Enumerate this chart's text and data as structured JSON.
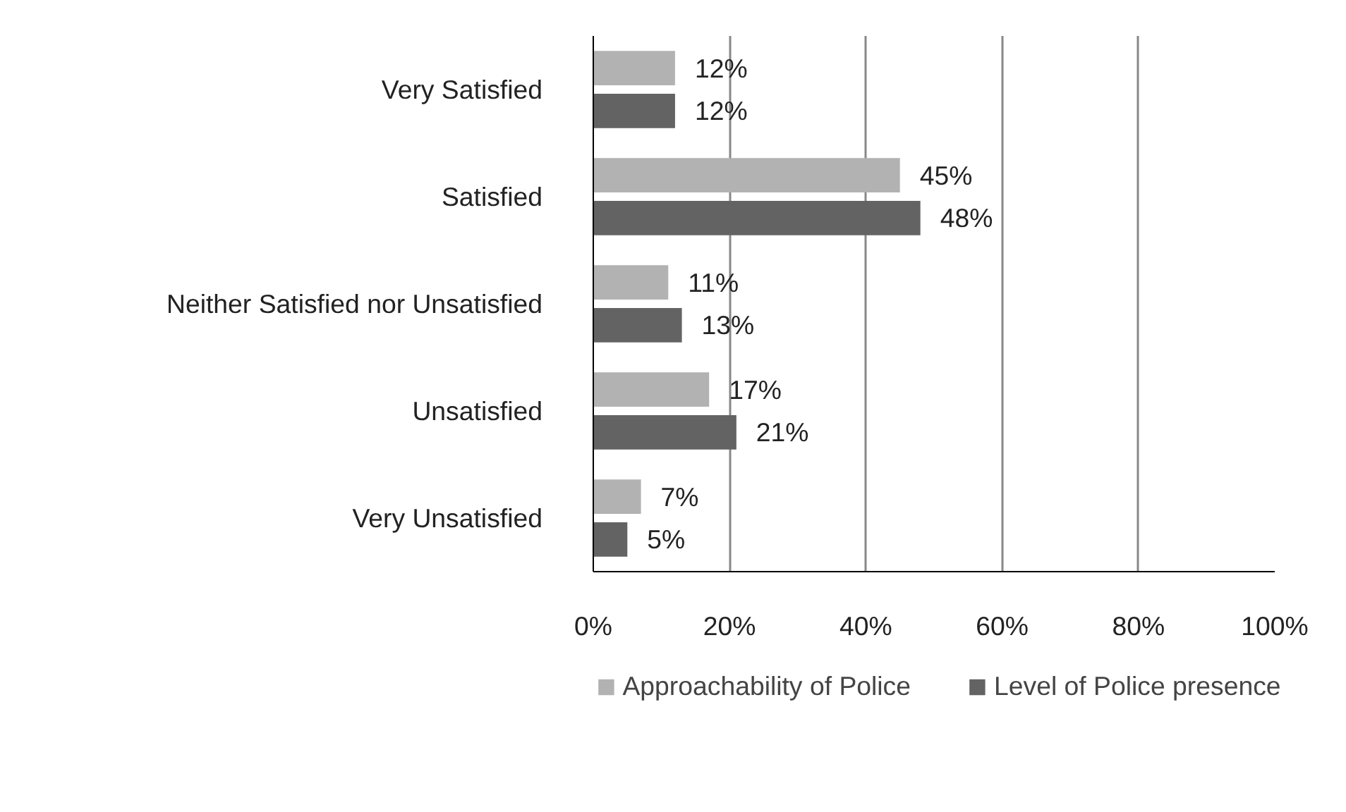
{
  "chart_data": {
    "type": "bar",
    "orientation": "horizontal",
    "categories": [
      "Very Satisfied",
      "Satisfied",
      "Neither Satisfied nor Unsatisfied",
      "Unsatisfied",
      "Very Unsatisfied"
    ],
    "series": [
      {
        "name": "Approachability of Police",
        "color": "#b2b2b2",
        "values": [
          12,
          45,
          11,
          17,
          7
        ],
        "value_labels": [
          "12%",
          "45%",
          "11%",
          "17%",
          "7%"
        ]
      },
      {
        "name": "Level of Police presence",
        "color": "#636363",
        "values": [
          12,
          48,
          13,
          21,
          5
        ],
        "value_labels": [
          "12%",
          "48%",
          "13%",
          "21%",
          "5%"
        ]
      }
    ],
    "xlim": [
      0,
      100
    ],
    "xticks": [
      {
        "value": 0,
        "label": "0%"
      },
      {
        "value": 20,
        "label": "20%"
      },
      {
        "value": 40,
        "label": "40%"
      },
      {
        "value": 60,
        "label": "60%"
      },
      {
        "value": 80,
        "label": "80%"
      },
      {
        "value": 100,
        "label": "100%"
      }
    ],
    "grid": "x",
    "legend": "bottom"
  }
}
